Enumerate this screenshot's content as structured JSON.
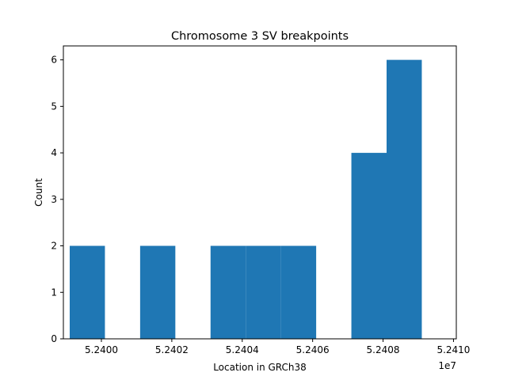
{
  "chart_data": {
    "type": "bar",
    "title": "Chromosome 3 SV breakpoints",
    "xlabel": "Location in GRCh38",
    "ylabel": "Count",
    "x_offset_label": "1e7",
    "bar_color": "#1f77b4",
    "xlim": [
      52398920,
      52410080
    ],
    "ylim": [
      0,
      6.3
    ],
    "bins": [
      {
        "start": 52399100,
        "end": 52400100,
        "count": 2
      },
      {
        "start": 52400100,
        "end": 52401100,
        "count": 0
      },
      {
        "start": 52401100,
        "end": 52402100,
        "count": 2
      },
      {
        "start": 52402100,
        "end": 52403100,
        "count": 0
      },
      {
        "start": 52403100,
        "end": 52404100,
        "count": 2
      },
      {
        "start": 52404100,
        "end": 52405100,
        "count": 2
      },
      {
        "start": 52405100,
        "end": 52406100,
        "count": 2
      },
      {
        "start": 52406100,
        "end": 52407100,
        "count": 0
      },
      {
        "start": 52407100,
        "end": 52408100,
        "count": 4
      },
      {
        "start": 52408100,
        "end": 52409100,
        "count": 6
      }
    ],
    "x_ticks": [
      {
        "value": 52400000,
        "label": "5.2400"
      },
      {
        "value": 52402000,
        "label": "5.2402"
      },
      {
        "value": 52404000,
        "label": "5.2404"
      },
      {
        "value": 52406000,
        "label": "5.2406"
      },
      {
        "value": 52408000,
        "label": "5.2408"
      },
      {
        "value": 52410000,
        "label": "5.2410"
      }
    ],
    "y_ticks": [
      {
        "value": 0,
        "label": "0"
      },
      {
        "value": 1,
        "label": "1"
      },
      {
        "value": 2,
        "label": "2"
      },
      {
        "value": 3,
        "label": "3"
      },
      {
        "value": 4,
        "label": "4"
      },
      {
        "value": 5,
        "label": "5"
      },
      {
        "value": 6,
        "label": "6"
      }
    ],
    "grid": false,
    "legend": "none"
  }
}
